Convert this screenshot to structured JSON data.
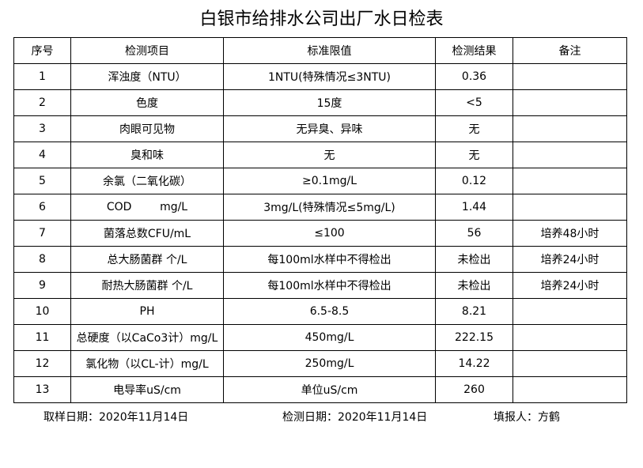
{
  "header": {
    "title": "白银市给排水公司出厂水日检表"
  },
  "table": {
    "columns": [
      "序号",
      "检测项目",
      "标准限值",
      "检测结果",
      "备注"
    ],
    "rows": [
      [
        "1",
        "浑浊度（NTU）",
        "1NTU(特殊情况≤3NTU)",
        "0.36",
        null
      ],
      [
        "2",
        "色度",
        "15度",
        "<5",
        null
      ],
      [
        "3",
        "肉眼可见物",
        "无异臭、异味",
        "无",
        null
      ],
      [
        "4",
        "臭和味",
        "无",
        "无",
        null
      ],
      [
        "5",
        "余氯（二氧化碳）",
        "≥0.1mg/L",
        "0.12",
        null
      ],
      [
        "6",
        "COD        mg/L",
        "3mg/L(特殊情况≤5mg/L)",
        "1.44",
        null
      ],
      [
        "7",
        "菌落总数CFU/mL",
        "≤100",
        "56",
        "培养48小时"
      ],
      [
        "8",
        "总大肠菌群 个/L",
        "每100ml水样中不得检出",
        "未检出",
        "培养24小时"
      ],
      [
        "9",
        "耐热大肠菌群 个/L",
        "每100ml水样中不得检出",
        "未检出",
        "培养24小时"
      ],
      [
        "10",
        "PH",
        "6.5-8.5",
        "8.21",
        null
      ],
      [
        "11",
        "总硬度（以CaCo3计）mg/L",
        "450mg/L",
        "222.15",
        null
      ],
      [
        "12",
        "氯化物（以CL-计）mg/L",
        "250mg/L",
        "14.22",
        null
      ],
      [
        "13",
        "电导率uS/cm",
        "单位uS/cm",
        "260",
        null
      ]
    ]
  },
  "footer": {
    "sample_date": "取样日期：2020年11月14日",
    "test_date": "检测日期：2020年11月14日",
    "reporter": "填报人：方鹤"
  }
}
